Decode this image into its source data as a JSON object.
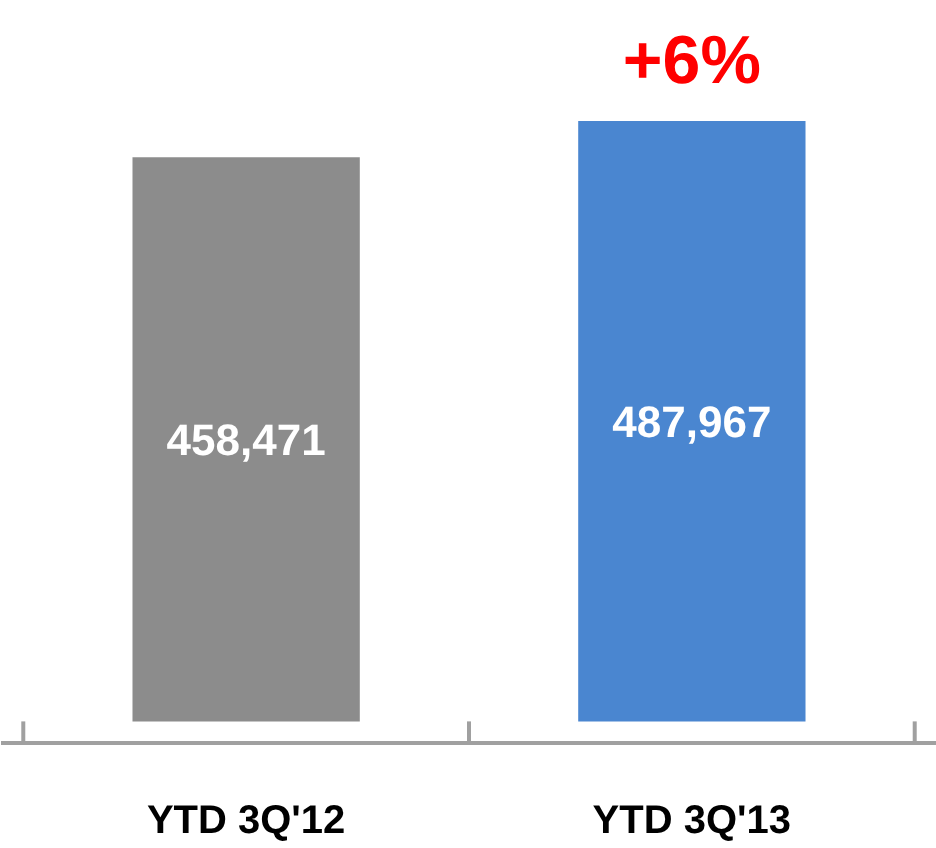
{
  "chart_data": {
    "type": "bar",
    "categories": [
      "YTD 3Q'12",
      "YTD 3Q'13"
    ],
    "values": [
      458471,
      487967
    ],
    "colors": [
      "#8c8c8c",
      "#4a86d0"
    ],
    "value_labels": [
      "458,471",
      "487,967"
    ],
    "annotations": [
      "+6%"
    ]
  }
}
